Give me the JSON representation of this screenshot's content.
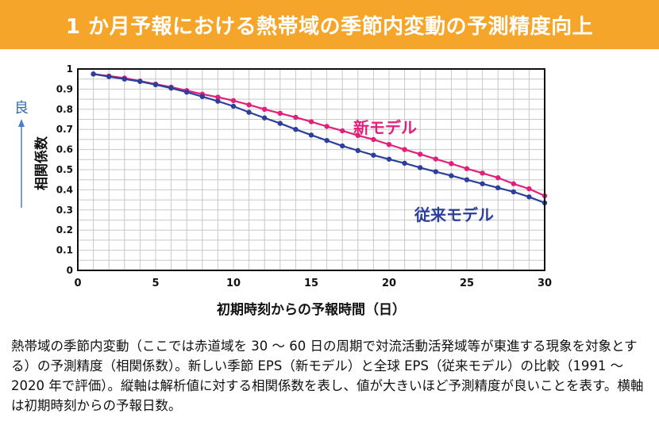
{
  "title": "1 か月予報における熱帯域の季節内変動の予測精度向上",
  "chart_data": {
    "type": "line",
    "title": "",
    "xlabel": "初期時刻からの予報時間（日）",
    "ylabel": "相関係数",
    "xlim": [
      0,
      30
    ],
    "ylim": [
      0,
      1
    ],
    "xticks": [
      0,
      5,
      10,
      15,
      20,
      25,
      30
    ],
    "yticks": [
      0,
      0.1,
      0.2,
      0.3,
      0.4,
      0.5,
      0.6,
      0.7,
      0.8,
      0.9,
      1
    ],
    "ytick_labels": [
      "0",
      "0.1",
      "0.2",
      "0.3",
      "0.4",
      "0.5",
      "0.6",
      "0.7",
      "0.8",
      "0.9",
      "1"
    ],
    "grid": true,
    "better_indicator": "良",
    "x": [
      1,
      2,
      3,
      4,
      5,
      6,
      7,
      8,
      9,
      10,
      11,
      12,
      13,
      14,
      15,
      16,
      17,
      18,
      19,
      20,
      21,
      22,
      23,
      24,
      25,
      26,
      27,
      28,
      29,
      30
    ],
    "series": [
      {
        "name": "新モデル",
        "color": "#e2207a",
        "values": [
          0.975,
          0.965,
          0.955,
          0.94,
          0.925,
          0.91,
          0.893,
          0.875,
          0.86,
          0.843,
          0.822,
          0.8,
          0.78,
          0.76,
          0.738,
          0.715,
          0.693,
          0.67,
          0.65,
          0.625,
          0.6,
          0.577,
          0.553,
          0.53,
          0.505,
          0.483,
          0.46,
          0.43,
          0.405,
          0.37
        ]
      },
      {
        "name": "従来モデル",
        "color": "#2b3f9b",
        "values": [
          0.975,
          0.962,
          0.95,
          0.938,
          0.922,
          0.905,
          0.885,
          0.863,
          0.84,
          0.815,
          0.785,
          0.757,
          0.73,
          0.7,
          0.672,
          0.645,
          0.618,
          0.595,
          0.572,
          0.552,
          0.532,
          0.51,
          0.49,
          0.47,
          0.45,
          0.43,
          0.41,
          0.39,
          0.365,
          0.335
        ]
      }
    ]
  },
  "caption": "熱帯域の季節内変動（ここでは赤道域を 30 ～ 60 日の周期で対流活動活発域等が東進する現象を対象とする）の予測精度（相関係数）。新しい季節 EPS（新モデル）と全球 EPS（従来モデル）の比較（1991 ～ 2020 年で評価）。縦軸は解析値に対する相関係数を表し、値が大きいほど予測精度が良いことを表す。横軸は初期時刻からの予報日数。"
}
